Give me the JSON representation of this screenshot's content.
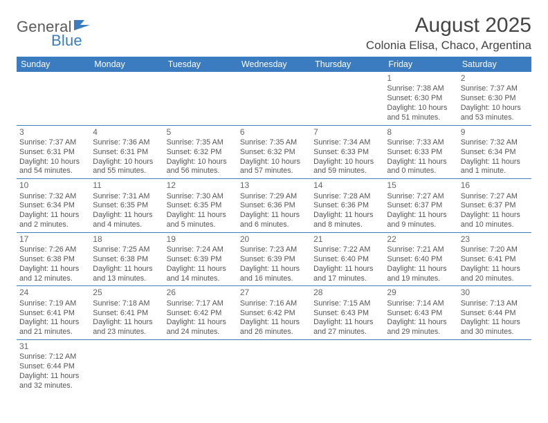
{
  "brand": {
    "general": "General",
    "blue": "Blue"
  },
  "title": {
    "month_year": "August 2025",
    "location": "Colonia Elisa, Chaco, Argentina"
  },
  "dow": [
    "Sunday",
    "Monday",
    "Tuesday",
    "Wednesday",
    "Thursday",
    "Friday",
    "Saturday"
  ],
  "colors": {
    "header_bg": "#3b7bbf",
    "header_fg": "#ffffff",
    "text": "#555555",
    "rule": "#3b7bbf"
  },
  "weeks": [
    [
      null,
      null,
      null,
      null,
      null,
      {
        "n": "1",
        "sr": "Sunrise: 7:38 AM",
        "ss": "Sunset: 6:30 PM",
        "d1": "Daylight: 10 hours",
        "d2": "and 51 minutes."
      },
      {
        "n": "2",
        "sr": "Sunrise: 7:37 AM",
        "ss": "Sunset: 6:30 PM",
        "d1": "Daylight: 10 hours",
        "d2": "and 53 minutes."
      }
    ],
    [
      {
        "n": "3",
        "sr": "Sunrise: 7:37 AM",
        "ss": "Sunset: 6:31 PM",
        "d1": "Daylight: 10 hours",
        "d2": "and 54 minutes."
      },
      {
        "n": "4",
        "sr": "Sunrise: 7:36 AM",
        "ss": "Sunset: 6:31 PM",
        "d1": "Daylight: 10 hours",
        "d2": "and 55 minutes."
      },
      {
        "n": "5",
        "sr": "Sunrise: 7:35 AM",
        "ss": "Sunset: 6:32 PM",
        "d1": "Daylight: 10 hours",
        "d2": "and 56 minutes."
      },
      {
        "n": "6",
        "sr": "Sunrise: 7:35 AM",
        "ss": "Sunset: 6:32 PM",
        "d1": "Daylight: 10 hours",
        "d2": "and 57 minutes."
      },
      {
        "n": "7",
        "sr": "Sunrise: 7:34 AM",
        "ss": "Sunset: 6:33 PM",
        "d1": "Daylight: 10 hours",
        "d2": "and 59 minutes."
      },
      {
        "n": "8",
        "sr": "Sunrise: 7:33 AM",
        "ss": "Sunset: 6:33 PM",
        "d1": "Daylight: 11 hours",
        "d2": "and 0 minutes."
      },
      {
        "n": "9",
        "sr": "Sunrise: 7:32 AM",
        "ss": "Sunset: 6:34 PM",
        "d1": "Daylight: 11 hours",
        "d2": "and 1 minute."
      }
    ],
    [
      {
        "n": "10",
        "sr": "Sunrise: 7:32 AM",
        "ss": "Sunset: 6:34 PM",
        "d1": "Daylight: 11 hours",
        "d2": "and 2 minutes."
      },
      {
        "n": "11",
        "sr": "Sunrise: 7:31 AM",
        "ss": "Sunset: 6:35 PM",
        "d1": "Daylight: 11 hours",
        "d2": "and 4 minutes."
      },
      {
        "n": "12",
        "sr": "Sunrise: 7:30 AM",
        "ss": "Sunset: 6:35 PM",
        "d1": "Daylight: 11 hours",
        "d2": "and 5 minutes."
      },
      {
        "n": "13",
        "sr": "Sunrise: 7:29 AM",
        "ss": "Sunset: 6:36 PM",
        "d1": "Daylight: 11 hours",
        "d2": "and 6 minutes."
      },
      {
        "n": "14",
        "sr": "Sunrise: 7:28 AM",
        "ss": "Sunset: 6:36 PM",
        "d1": "Daylight: 11 hours",
        "d2": "and 8 minutes."
      },
      {
        "n": "15",
        "sr": "Sunrise: 7:27 AM",
        "ss": "Sunset: 6:37 PM",
        "d1": "Daylight: 11 hours",
        "d2": "and 9 minutes."
      },
      {
        "n": "16",
        "sr": "Sunrise: 7:27 AM",
        "ss": "Sunset: 6:37 PM",
        "d1": "Daylight: 11 hours",
        "d2": "and 10 minutes."
      }
    ],
    [
      {
        "n": "17",
        "sr": "Sunrise: 7:26 AM",
        "ss": "Sunset: 6:38 PM",
        "d1": "Daylight: 11 hours",
        "d2": "and 12 minutes."
      },
      {
        "n": "18",
        "sr": "Sunrise: 7:25 AM",
        "ss": "Sunset: 6:38 PM",
        "d1": "Daylight: 11 hours",
        "d2": "and 13 minutes."
      },
      {
        "n": "19",
        "sr": "Sunrise: 7:24 AM",
        "ss": "Sunset: 6:39 PM",
        "d1": "Daylight: 11 hours",
        "d2": "and 14 minutes."
      },
      {
        "n": "20",
        "sr": "Sunrise: 7:23 AM",
        "ss": "Sunset: 6:39 PM",
        "d1": "Daylight: 11 hours",
        "d2": "and 16 minutes."
      },
      {
        "n": "21",
        "sr": "Sunrise: 7:22 AM",
        "ss": "Sunset: 6:40 PM",
        "d1": "Daylight: 11 hours",
        "d2": "and 17 minutes."
      },
      {
        "n": "22",
        "sr": "Sunrise: 7:21 AM",
        "ss": "Sunset: 6:40 PM",
        "d1": "Daylight: 11 hours",
        "d2": "and 19 minutes."
      },
      {
        "n": "23",
        "sr": "Sunrise: 7:20 AM",
        "ss": "Sunset: 6:41 PM",
        "d1": "Daylight: 11 hours",
        "d2": "and 20 minutes."
      }
    ],
    [
      {
        "n": "24",
        "sr": "Sunrise: 7:19 AM",
        "ss": "Sunset: 6:41 PM",
        "d1": "Daylight: 11 hours",
        "d2": "and 21 minutes."
      },
      {
        "n": "25",
        "sr": "Sunrise: 7:18 AM",
        "ss": "Sunset: 6:41 PM",
        "d1": "Daylight: 11 hours",
        "d2": "and 23 minutes."
      },
      {
        "n": "26",
        "sr": "Sunrise: 7:17 AM",
        "ss": "Sunset: 6:42 PM",
        "d1": "Daylight: 11 hours",
        "d2": "and 24 minutes."
      },
      {
        "n": "27",
        "sr": "Sunrise: 7:16 AM",
        "ss": "Sunset: 6:42 PM",
        "d1": "Daylight: 11 hours",
        "d2": "and 26 minutes."
      },
      {
        "n": "28",
        "sr": "Sunrise: 7:15 AM",
        "ss": "Sunset: 6:43 PM",
        "d1": "Daylight: 11 hours",
        "d2": "and 27 minutes."
      },
      {
        "n": "29",
        "sr": "Sunrise: 7:14 AM",
        "ss": "Sunset: 6:43 PM",
        "d1": "Daylight: 11 hours",
        "d2": "and 29 minutes."
      },
      {
        "n": "30",
        "sr": "Sunrise: 7:13 AM",
        "ss": "Sunset: 6:44 PM",
        "d1": "Daylight: 11 hours",
        "d2": "and 30 minutes."
      }
    ],
    [
      {
        "n": "31",
        "sr": "Sunrise: 7:12 AM",
        "ss": "Sunset: 6:44 PM",
        "d1": "Daylight: 11 hours",
        "d2": "and 32 minutes."
      },
      null,
      null,
      null,
      null,
      null,
      null
    ]
  ]
}
